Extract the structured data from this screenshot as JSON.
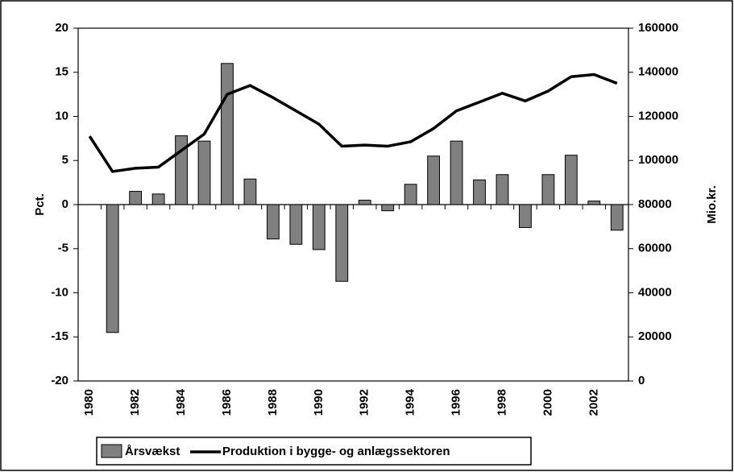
{
  "chart_data": {
    "type": "bar_line",
    "categories": [
      "1980",
      null,
      "1982",
      null,
      "1984",
      null,
      "1986",
      null,
      "1988",
      null,
      "1990",
      null,
      "1992",
      null,
      "1994",
      null,
      "1996",
      null,
      "1998",
      null,
      "2000",
      null,
      "2002",
      null
    ],
    "series": [
      {
        "name": "Årsvækst",
        "type": "bar",
        "color": "#808080",
        "axis": "y",
        "values": [
          null,
          -14.5,
          1.5,
          1.2,
          7.8,
          7.2,
          16,
          2.9,
          -3.9,
          -4.5,
          -5.1,
          -8.7,
          0.5,
          -0.7,
          2.3,
          5.5,
          7.2,
          2.8,
          3.4,
          -2.6,
          3.4,
          5.6,
          0.4,
          -2.9
        ]
      },
      {
        "name": "Produktion i bygge- og anlægssektoren",
        "type": "line",
        "color": "#000000",
        "axis": "y2",
        "values": [
          111000,
          95000,
          96500,
          97000,
          104500,
          112000,
          130000,
          134000,
          128500,
          122500,
          116500,
          106500,
          107000,
          106500,
          108500,
          114500,
          122500,
          126500,
          130500,
          127000,
          131500,
          138000,
          139000,
          135000
        ]
      }
    ],
    "ylabel": "Pct.",
    "y2label": "Mio.kr.",
    "ylim": [
      -20,
      20
    ],
    "yticks": [
      -20,
      -15,
      -10,
      -5,
      0,
      5,
      10,
      15,
      20
    ],
    "y2lim": [
      0,
      160000
    ],
    "y2ticks": [
      0,
      20000,
      40000,
      60000,
      80000,
      100000,
      120000,
      140000,
      160000
    ],
    "grid": false,
    "legend": "bottom-left"
  }
}
